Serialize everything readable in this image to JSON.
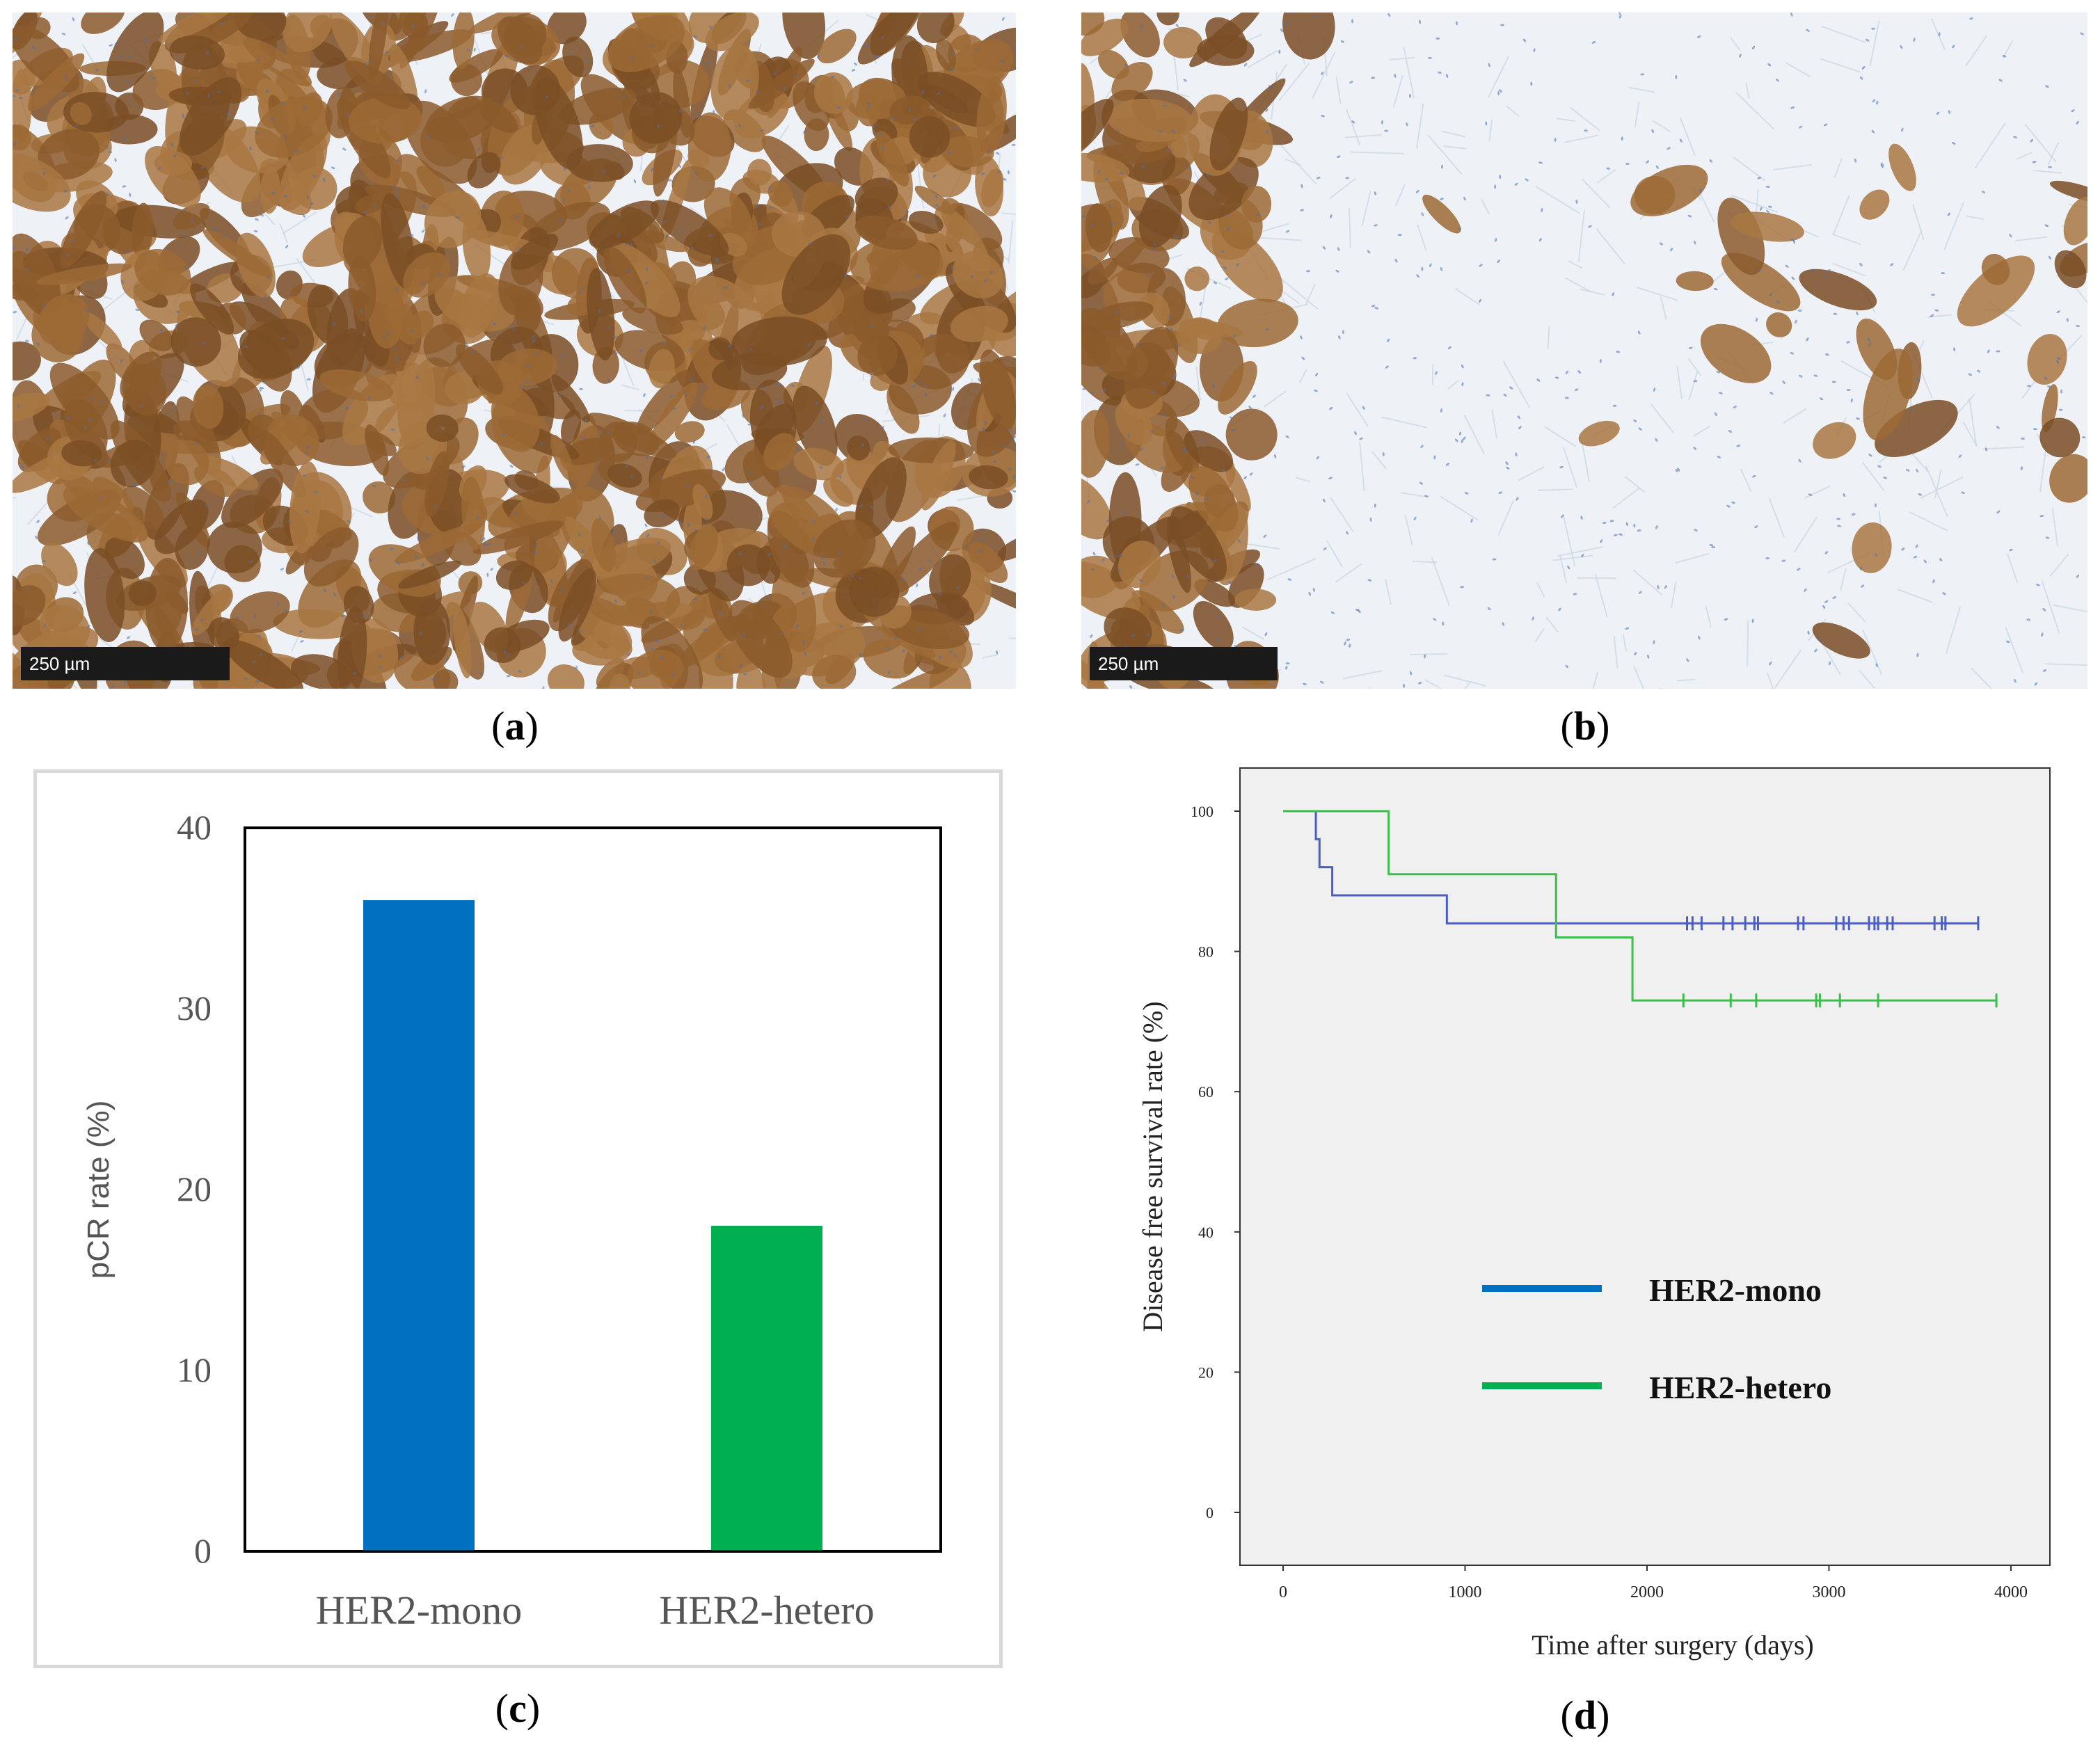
{
  "panels": {
    "a": {
      "label_open": "(",
      "label_letter": "a",
      "label_close": ")",
      "scale_text": "250 µm",
      "description": "HER2 IHC, homogeneous strong membranous staining"
    },
    "b": {
      "label_open": "(",
      "label_letter": "b",
      "label_close": ")",
      "scale_text": "250 µm",
      "description": "HER2 IHC, heterogeneous staining"
    },
    "c": {
      "label_open": "(",
      "label_letter": "c",
      "label_close": ")"
    },
    "d": {
      "label_open": "(",
      "label_letter": "d",
      "label_close": ")"
    }
  },
  "colors": {
    "mono": "#0070c0",
    "hetero": "#00b050",
    "km_mono": "#4a5fc1",
    "km_hetero": "#3cbf4a",
    "km_bg": "#f0f0f0",
    "stain_brown": "#8b5a2b",
    "stroma_blue": "#c7d6e6"
  },
  "chart_data": [
    {
      "type": "bar",
      "categories": [
        "HER2-mono",
        "HER2-hetero"
      ],
      "values": [
        36,
        18
      ],
      "title": "",
      "xlabel": "",
      "ylabel": "pCR rate (%)",
      "ylim": [
        0,
        40
      ],
      "yticks": [
        "0",
        "10",
        "20",
        "30",
        "40"
      ],
      "grid": false
    },
    {
      "type": "line",
      "subtype": "kaplan-meier step",
      "xlabel": "Time after surgery (days)",
      "ylabel": "Disease free survival rate (%)",
      "xlim": [
        0,
        4000
      ],
      "ylim": [
        0,
        100
      ],
      "xticks": [
        "0",
        "1000",
        "2000",
        "3000",
        "4000"
      ],
      "yticks": [
        "0",
        "20",
        "40",
        "60",
        "80",
        "100"
      ],
      "legend_position": "center-right",
      "series": [
        {
          "name": "HER2-mono",
          "steps": [
            [
              0,
              100
            ],
            [
              180,
              96
            ],
            [
              200,
              92
            ],
            [
              270,
              88
            ],
            [
              900,
              84
            ],
            [
              3820,
              84
            ]
          ],
          "censored": [
            2220,
            2250,
            2300,
            2420,
            2470,
            2540,
            2590,
            2610,
            2830,
            2860,
            3040,
            3080,
            3110,
            3220,
            3250,
            3270,
            3320,
            3350,
            3580,
            3620,
            3640,
            3820
          ]
        },
        {
          "name": "HER2-hetero",
          "steps": [
            [
              0,
              100
            ],
            [
              580,
              91
            ],
            [
              1500,
              82
            ],
            [
              1920,
              73
            ],
            [
              3920,
              73
            ]
          ],
          "censored": [
            2200,
            2460,
            2600,
            2930,
            2950,
            3060,
            3270,
            3920
          ]
        }
      ]
    }
  ]
}
